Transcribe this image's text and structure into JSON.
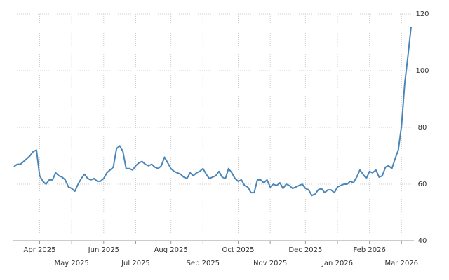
{
  "chart_data": {
    "type": "line",
    "categories": [
      null,
      null,
      null,
      null,
      null,
      null,
      null,
      null,
      "Apr 2025",
      null,
      null,
      null,
      null,
      null,
      null,
      null,
      null,
      null,
      "May 2025",
      null,
      null,
      null,
      null,
      null,
      null,
      null,
      null,
      null,
      "Jun 2025",
      null,
      null,
      null,
      null,
      null,
      null,
      null,
      null,
      null,
      "Jul 2025",
      null,
      null,
      null,
      null,
      null,
      null,
      null,
      null,
      null,
      null,
      "Aug 2025",
      null,
      null,
      null,
      null,
      null,
      null,
      null,
      null,
      null,
      "Sep 2025",
      null,
      null,
      null,
      null,
      null,
      null,
      null,
      null,
      null,
      null,
      "Oct 2025",
      null,
      null,
      null,
      null,
      null,
      null,
      null,
      null,
      null,
      "Nov 2025",
      null,
      null,
      null,
      null,
      null,
      null,
      null,
      null,
      null,
      null,
      "Dec 2025",
      null,
      null,
      null,
      null,
      null,
      null,
      null,
      null,
      null,
      "Jan 2026",
      null,
      null,
      null,
      null,
      null,
      null,
      null,
      null,
      null,
      "Feb 2026",
      null,
      null,
      null,
      null,
      null,
      null,
      null,
      null,
      null,
      "Mar 2026",
      null,
      null,
      null
    ],
    "values": [
      66.2,
      67,
      67,
      68,
      69,
      70,
      71.5,
      72,
      63,
      61,
      60,
      61.5,
      61.5,
      64,
      63,
      62.5,
      61.5,
      59,
      58.5,
      57.5,
      60,
      62,
      63.5,
      62,
      61.5,
      62,
      61,
      61,
      62,
      64,
      65,
      66,
      72.5,
      73.5,
      71.5,
      65.5,
      65.5,
      65,
      66.5,
      67.5,
      68,
      67,
      66.5,
      67,
      66,
      65.5,
      66.5,
      69.5,
      67.5,
      65.5,
      64.5,
      64,
      63.5,
      62.5,
      62,
      64,
      63,
      64,
      64.5,
      65.5,
      63.5,
      62,
      62.5,
      63,
      64.5,
      62.5,
      62,
      65.5,
      64,
      62,
      61,
      61.5,
      59.5,
      59,
      57,
      57,
      61.5,
      61.5,
      60.5,
      61.5,
      59,
      60,
      59.5,
      60.5,
      58.5,
      60,
      59.5,
      58.5,
      59,
      59.5,
      60,
      58.5,
      58,
      56,
      56.5,
      58,
      58.5,
      57,
      58,
      58,
      57,
      59,
      59.5,
      60,
      60,
      61,
      60.5,
      62.5,
      65,
      63.5,
      62,
      64.5,
      64,
      65,
      62.5,
      63,
      66,
      66.5,
      65.5,
      69,
      72,
      80.5,
      95.5,
      105,
      115.5
    ],
    "color": "#4a86b8",
    "ylim": [
      40,
      120
    ],
    "yticks": [
      40,
      60,
      80,
      100,
      120
    ],
    "grid": true
  }
}
